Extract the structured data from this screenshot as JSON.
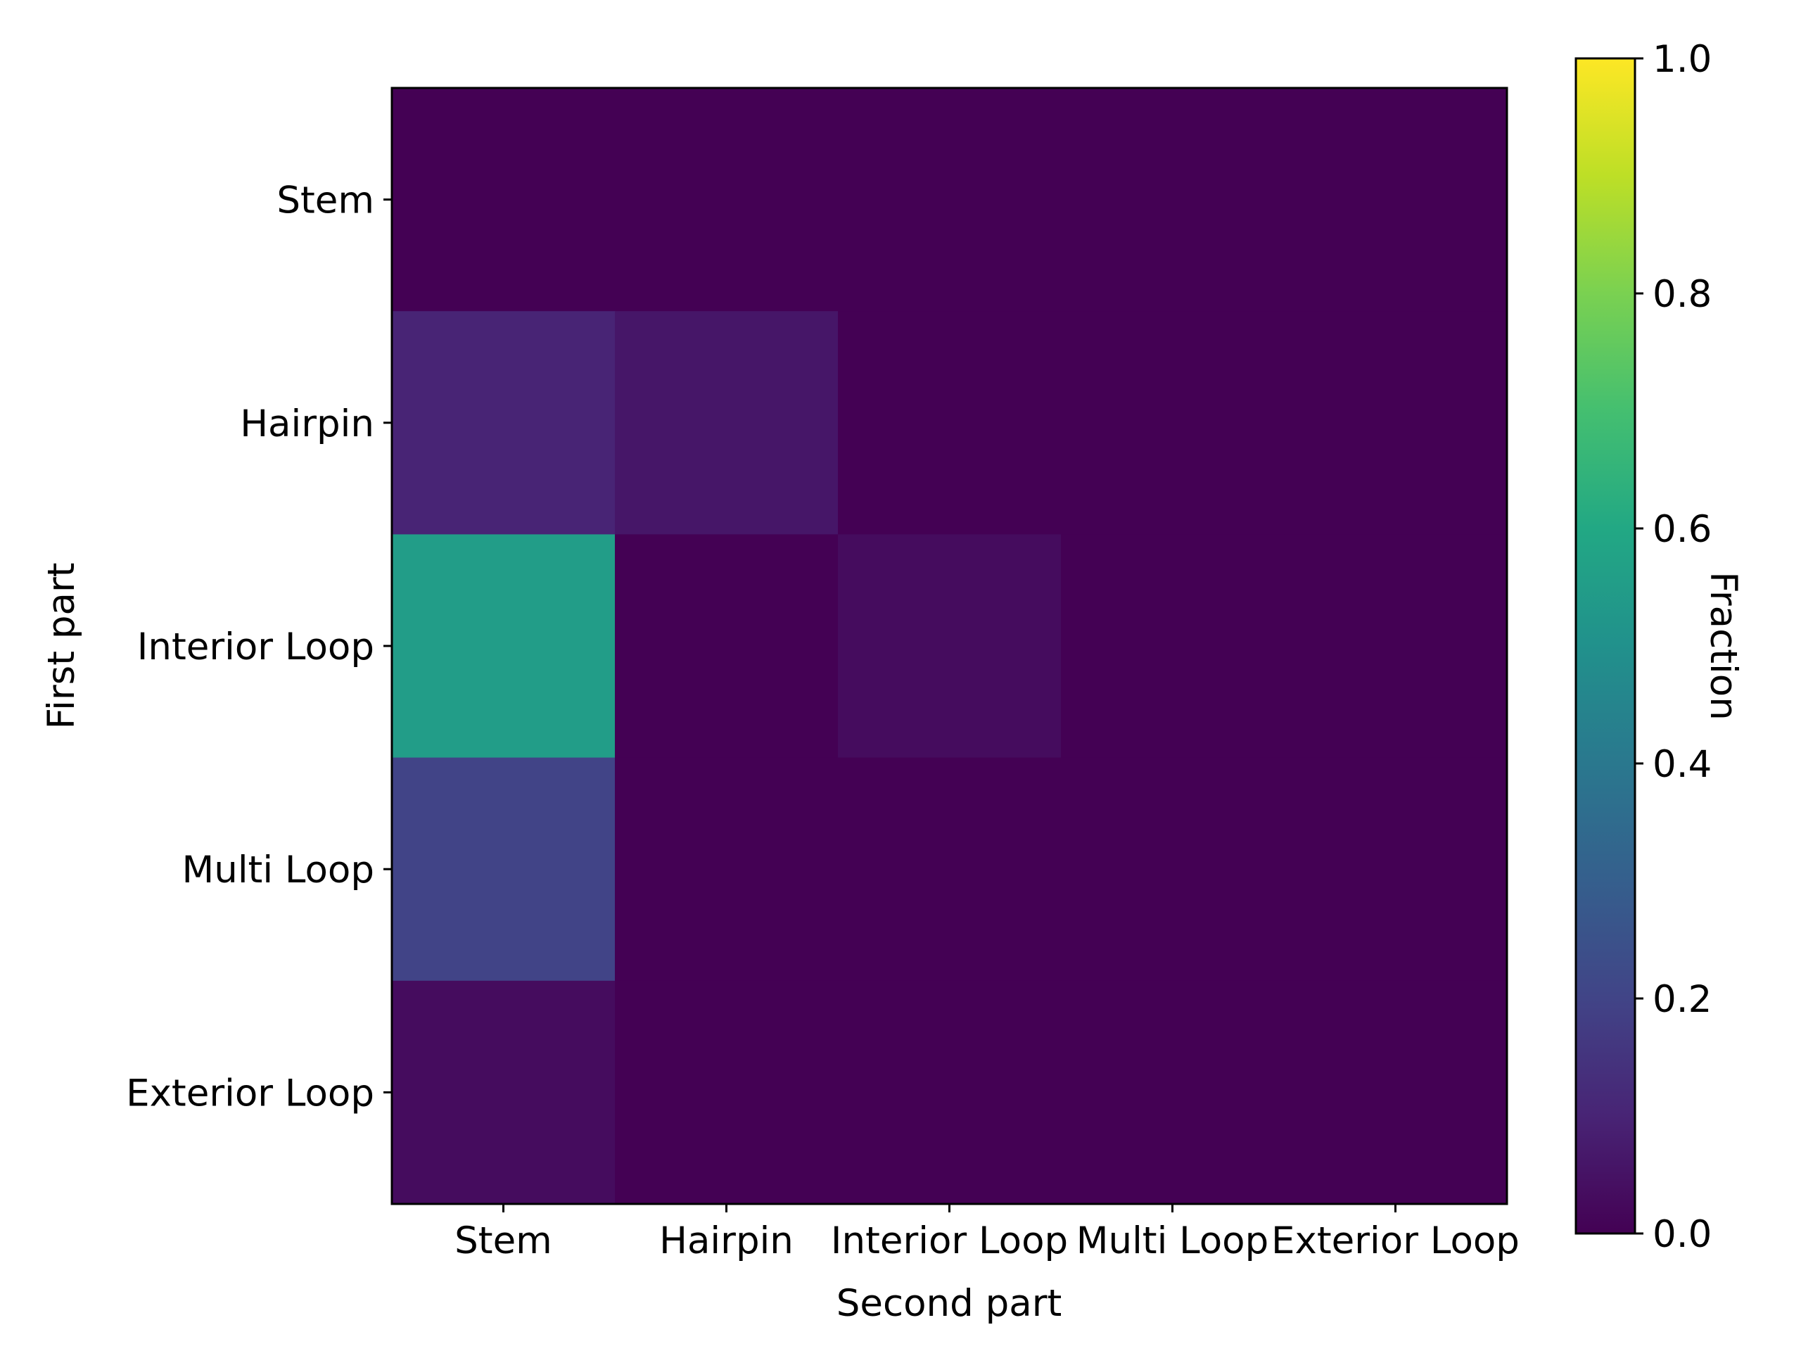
{
  "chart_data": {
    "type": "heatmap",
    "xlabel": "Second part",
    "ylabel": "First part",
    "x_categories": [
      "Stem",
      "Hairpin",
      "Interior Loop",
      "Multi Loop",
      "Exterior Loop"
    ],
    "y_categories": [
      "Stem",
      "Hairpin",
      "Interior Loop",
      "Multi Loop",
      "Exterior Loop"
    ],
    "values": [
      [
        0.0,
        0.0,
        0.0,
        0.0,
        0.0
      ],
      [
        0.1,
        0.06,
        0.0,
        0.0,
        0.0
      ],
      [
        0.55,
        0.0,
        0.03,
        0.0,
        0.0
      ],
      [
        0.2,
        0.0,
        0.0,
        0.0,
        0.0
      ],
      [
        0.03,
        0.0,
        0.0,
        0.0,
        0.0
      ]
    ],
    "colorbar": {
      "label": "Fraction",
      "min": 0.0,
      "max": 1.0,
      "ticks": [
        "0.0",
        "0.2",
        "0.4",
        "0.6",
        "0.8",
        "1.0"
      ],
      "colormap": "viridis"
    }
  }
}
